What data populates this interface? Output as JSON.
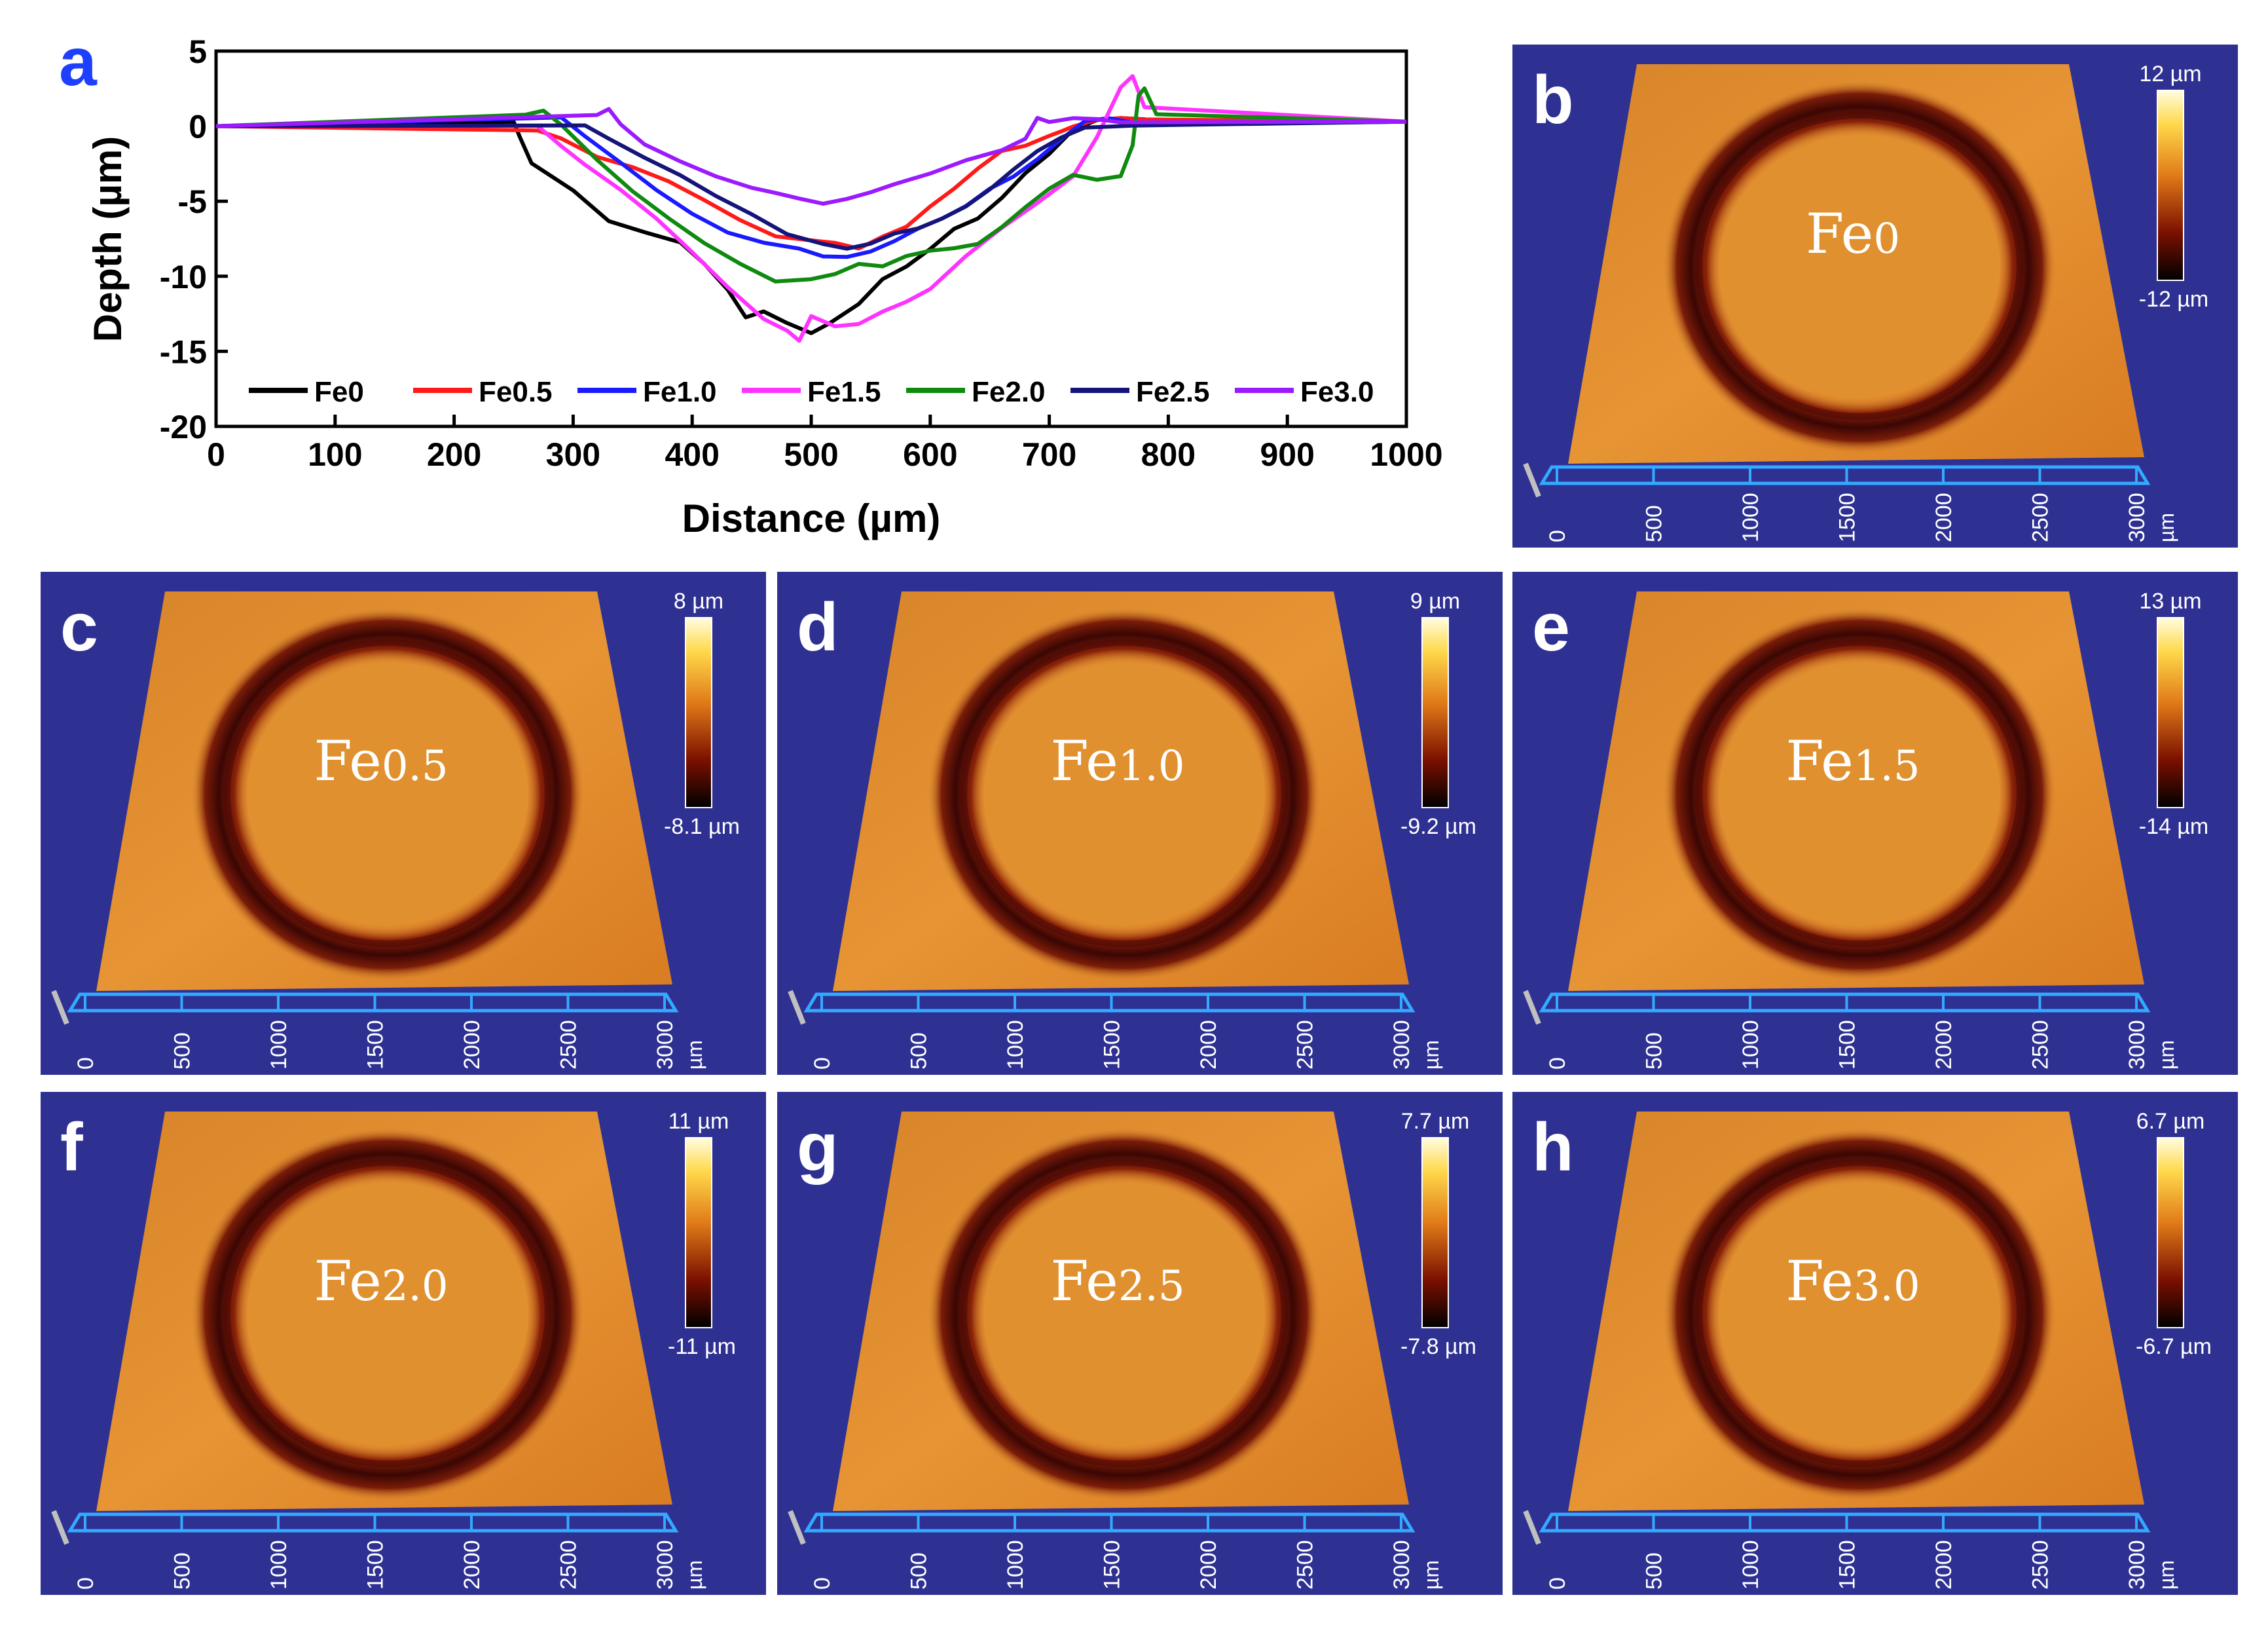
{
  "chart_data": [
    {
      "panel": "a",
      "type": "line",
      "title": "",
      "xlabel": "Distance (µm)",
      "ylabel": "Depth (µm)",
      "xlim": [
        0,
        1000
      ],
      "ylim": [
        -20,
        5
      ],
      "xticks": [
        "0",
        "100",
        "200",
        "300",
        "400",
        "500",
        "600",
        "700",
        "800",
        "900",
        "1000"
      ],
      "yticks": [
        "5",
        "0",
        "-5",
        "-10",
        "-15",
        "-20"
      ],
      "series": [
        {
          "name": "Fe0",
          "color": "#000000",
          "x": [
            0,
            250,
            255,
            265,
            300,
            330,
            360,
            390,
            410,
            430,
            445,
            460,
            480,
            500,
            515,
            540,
            560,
            580,
            600,
            620,
            640,
            660,
            680,
            700,
            720,
            740,
            760,
            780,
            800,
            1000
          ],
          "y": [
            0,
            0,
            -1,
            -2.5,
            -4,
            -6,
            -7,
            -8,
            -9.5,
            -11,
            -12.5,
            -12,
            -13,
            -14,
            -13.5,
            -12,
            -10,
            -9,
            -8,
            -7,
            -6.5,
            -5,
            -3,
            -1.5,
            0,
            0.3,
            0.2,
            0.2,
            0.2,
            0.3
          ]
        },
        {
          "name": "Fe0.5",
          "color": "#ff1a1a",
          "x": [
            0,
            270,
            290,
            320,
            350,
            380,
            410,
            440,
            470,
            500,
            520,
            540,
            560,
            580,
            600,
            620,
            640,
            660,
            680,
            700,
            710,
            720,
            740,
            760,
            780,
            1000
          ],
          "y": [
            0,
            0,
            -0.5,
            -2,
            -3,
            -4,
            -5,
            -6,
            -7,
            -7.5,
            -8,
            -8.5,
            -7.5,
            -6.5,
            -5,
            -4,
            -3,
            -2,
            -1.5,
            -0.5,
            0,
            0.2,
            0.3,
            0.2,
            0.2,
            0.3
          ]
        },
        {
          "name": "Fe1.0",
          "color": "#1a1aff",
          "x": [
            0,
            290,
            310,
            340,
            370,
            400,
            430,
            460,
            490,
            510,
            530,
            550,
            570,
            590,
            610,
            630,
            650,
            670,
            690,
            710,
            730,
            750,
            780,
            1000
          ],
          "y": [
            0,
            0.3,
            -1,
            -2.5,
            -4,
            -5.5,
            -7,
            -8,
            -8.5,
            -8.8,
            -8.5,
            -8,
            -7.5,
            -7,
            -6.5,
            -5.5,
            -4,
            -3,
            -2,
            -1,
            0,
            0.3,
            0.2,
            0.3
          ]
        },
        {
          "name": "Fe1.5",
          "color": "#ff33ff",
          "x": [
            0,
            270,
            290,
            310,
            340,
            370,
            400,
            430,
            460,
            480,
            490,
            500,
            520,
            540,
            560,
            580,
            600,
            630,
            660,
            690,
            720,
            740,
            760,
            770,
            780,
            1000
          ],
          "y": [
            0,
            0.3,
            -1,
            -2.5,
            -4.5,
            -6.5,
            -8.5,
            -10.5,
            -12.5,
            -13.5,
            -14.5,
            -13,
            -13.5,
            -13,
            -12,
            -11.5,
            -11,
            -9,
            -7,
            -5,
            -3,
            -0.5,
            2.5,
            3,
            1,
            0.3
          ]
        },
        {
          "name": "Fe2.0",
          "color": "#0f8a0f",
          "x": [
            0,
            260,
            275,
            290,
            320,
            350,
            380,
            410,
            440,
            470,
            500,
            520,
            540,
            560,
            580,
            600,
            620,
            640,
            660,
            680,
            700,
            720,
            740,
            760,
            770,
            775,
            780,
            790,
            1000
          ],
          "y": [
            0,
            0.5,
            0.7,
            0,
            -2,
            -4,
            -6,
            -8,
            -9.5,
            -10.5,
            -10,
            -9.5,
            -9,
            -9.5,
            -9,
            -8.5,
            -8,
            -7.5,
            -6.5,
            -5.5,
            -4.5,
            -3.5,
            -3.5,
            -3,
            -1,
            2,
            2.2,
            0.5,
            0.3
          ]
        },
        {
          "name": "Fe2.5",
          "color": "#14147a",
          "x": [
            0,
            310,
            330,
            360,
            390,
            420,
            450,
            480,
            510,
            530,
            550,
            570,
            590,
            610,
            630,
            650,
            670,
            690,
            710,
            730,
            750,
            770,
            1000
          ],
          "y": [
            0,
            0.3,
            -0.5,
            -2,
            -3.5,
            -5,
            -6,
            -7,
            -7.5,
            -8,
            -8,
            -7.5,
            -7,
            -6,
            -5,
            -4,
            -3,
            -2,
            -1,
            0,
            0.3,
            0.3,
            0.3
          ]
        },
        {
          "name": "Fe3.0",
          "color": "#9b1aff",
          "x": [
            0,
            320,
            330,
            340,
            360,
            390,
            420,
            450,
            470,
            490,
            510,
            530,
            550,
            570,
            600,
            630,
            660,
            680,
            690,
            700,
            720,
            740,
            760,
            1000
          ],
          "y": [
            0,
            0.5,
            0.8,
            0,
            -1,
            -2,
            -3.2,
            -4.3,
            -4.8,
            -5,
            -5,
            -4.5,
            -4.2,
            -4,
            -3.5,
            -2.5,
            -1.5,
            -0.5,
            0.8,
            0.2,
            0.2,
            0.2,
            0.3,
            0.3
          ]
        }
      ]
    },
    {
      "panel": "b",
      "type": "heatmap",
      "description": "3D surface topography of wear track",
      "sample_label_base": "Fe",
      "sample_label_sub": "0",
      "colorbar_max": "12 µm",
      "colorbar_min": "-12 µm",
      "axis_ticks": [
        "0",
        "500",
        "1000",
        "1500",
        "2000",
        "2500",
        "3000"
      ],
      "axis_unit": "µm"
    },
    {
      "panel": "c",
      "type": "heatmap",
      "sample_label_base": "Fe",
      "sample_label_sub": "0.5",
      "colorbar_max": "8 µm",
      "colorbar_min": "-8.1 µm",
      "axis_ticks": [
        "0",
        "500",
        "1000",
        "1500",
        "2000",
        "2500",
        "3000"
      ],
      "axis_unit": "µm"
    },
    {
      "panel": "d",
      "type": "heatmap",
      "sample_label_base": "Fe",
      "sample_label_sub": "1.0",
      "colorbar_max": "9 µm",
      "colorbar_min": "-9.2 µm",
      "axis_ticks": [
        "0",
        "500",
        "1000",
        "1500",
        "2000",
        "2500",
        "3000"
      ],
      "axis_unit": "µm"
    },
    {
      "panel": "e",
      "type": "heatmap",
      "sample_label_base": "Fe",
      "sample_label_sub": "1.5",
      "colorbar_max": "13 µm",
      "colorbar_min": "-14 µm",
      "axis_ticks": [
        "0",
        "500",
        "1000",
        "1500",
        "2000",
        "2500",
        "3000"
      ],
      "axis_unit": "µm"
    },
    {
      "panel": "f",
      "type": "heatmap",
      "sample_label_base": "Fe",
      "sample_label_sub": "2.0",
      "colorbar_max": "11 µm",
      "colorbar_min": "-11 µm",
      "axis_ticks": [
        "0",
        "500",
        "1000",
        "1500",
        "2000",
        "2500",
        "3000"
      ],
      "axis_unit": "µm"
    },
    {
      "panel": "g",
      "type": "heatmap",
      "sample_label_base": "Fe",
      "sample_label_sub": "2.5",
      "colorbar_max": "7.7 µm",
      "colorbar_min": "-7.8 µm",
      "axis_ticks": [
        "0",
        "500",
        "1000",
        "1500",
        "2000",
        "2500",
        "3000"
      ],
      "axis_unit": "µm"
    },
    {
      "panel": "h",
      "type": "heatmap",
      "sample_label_base": "Fe",
      "sample_label_sub": "3.0",
      "colorbar_max": "6.7 µm",
      "colorbar_min": "-6.7 µm",
      "axis_ticks": [
        "0",
        "500",
        "1000",
        "1500",
        "2000",
        "2500",
        "3000"
      ],
      "axis_unit": "µm"
    }
  ],
  "colors": {
    "panel_background": "#2e3192",
    "surface": "#e08a2a",
    "track_dark": "#5a0c08",
    "axis_line": "#33aaff",
    "letter_a": "#1f3fff",
    "letter_other": "#ffffff",
    "colorbar_top": "#fffde0",
    "colorbar_mid": "#e07a18",
    "colorbar_low": "#7a1000",
    "colorbar_bottom": "#000000"
  }
}
